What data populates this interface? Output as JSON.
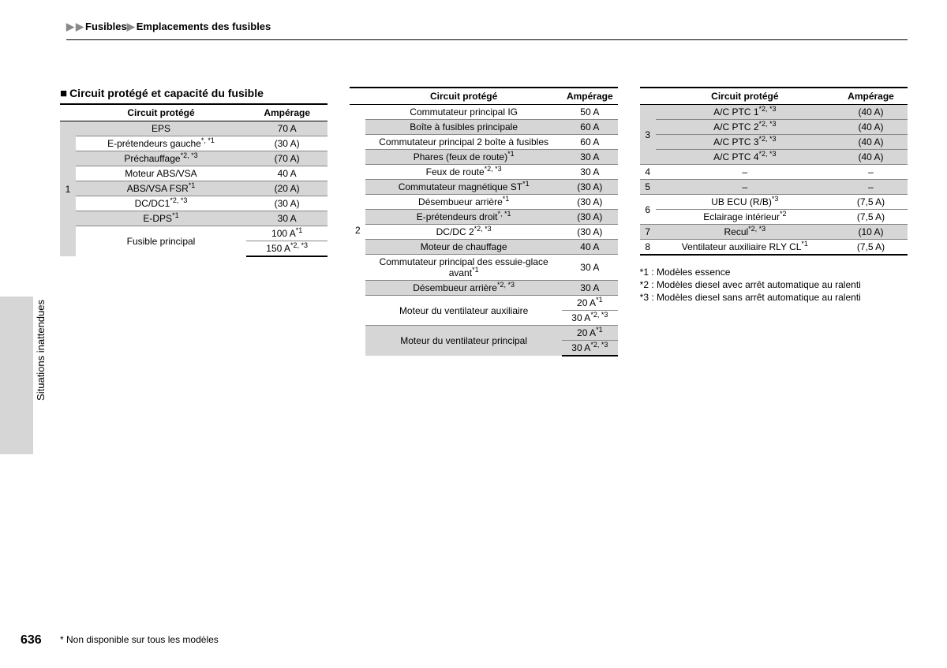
{
  "breadcrumb": {
    "part1": "Fusibles",
    "part2": "Emplacements des fusibles"
  },
  "side_label": "Situations inattendues",
  "page_number": "636",
  "footnote_line": "* Non disponible sur tous les modèles",
  "section_title": "Circuit protégé et capacité du fusible",
  "headers": {
    "circuit": "Circuit protégé",
    "amp": "Ampérage"
  },
  "table1": {
    "index": "1",
    "rows": [
      {
        "c": "EPS",
        "a": "70 A",
        "g": true
      },
      {
        "c": "E-prétendeurs gauche",
        "sup": "*, *1",
        "a": "(30 A)"
      },
      {
        "c": "Préchauffage",
        "sup": "*2, *3",
        "a": "(70 A)",
        "g": true
      },
      {
        "c": "Moteur ABS/VSA",
        "a": "40 A"
      },
      {
        "c": "ABS/VSA FSR",
        "sup": "*1",
        "a": "(20 A)",
        "g": true
      },
      {
        "c": "DC/DC1",
        "sup": "*2, *3",
        "a": "(30 A)"
      },
      {
        "c": "E-DPS",
        "sup": "*1",
        "a": "30 A",
        "g": true
      },
      {
        "c": "Fusible principal",
        "a": "100 A",
        "asup": "*1",
        "rowspan": 2
      },
      {
        "a": "150 A",
        "asup": "*2, *3"
      }
    ]
  },
  "table2": {
    "index": "2",
    "rows": [
      {
        "c": "Commutateur principal IG",
        "a": "50 A"
      },
      {
        "c": "Boîte à fusibles principale",
        "a": "60 A",
        "g": true
      },
      {
        "c": "Commutateur principal 2 boîte à fusibles",
        "a": "60 A"
      },
      {
        "c": "Phares (feux de route)",
        "sup": "*1",
        "a": "30 A",
        "g": true
      },
      {
        "c": "Feux de route",
        "sup": "*2, *3",
        "a": "30 A"
      },
      {
        "c": "Commutateur magnétique ST",
        "sup": "*1",
        "a": "(30 A)",
        "g": true
      },
      {
        "c": "Désembueur arrière",
        "sup": "*1",
        "a": "(30 A)"
      },
      {
        "c": "E-prétendeurs droit",
        "sup": "*, *1",
        "a": "(30 A)",
        "g": true
      },
      {
        "c": "DC/DC 2",
        "sup": "*2, *3",
        "a": "(30 A)"
      },
      {
        "c": "Moteur de chauffage",
        "a": "40 A",
        "g": true
      },
      {
        "c": "Commutateur principal des essuie-glace avant",
        "sup": "*1",
        "a": "30 A"
      },
      {
        "c": "Désembueur arrière",
        "sup": "*2, *3",
        "a": "30 A",
        "g": true
      },
      {
        "c": "Moteur du ventilateur auxiliaire",
        "a": "20 A",
        "asup": "*1",
        "rowspan": 2
      },
      {
        "a": "30 A",
        "asup": "*2, *3"
      },
      {
        "c": "Moteur du ventilateur principal",
        "a": "20 A",
        "asup": "*1",
        "g": true,
        "rowspan": 2
      },
      {
        "a": "30 A",
        "asup": "*2, *3",
        "g": true
      }
    ]
  },
  "table3": {
    "groups": [
      {
        "index": "3",
        "g": true,
        "rows": [
          {
            "c": "A/C PTC 1",
            "sup": "*2, *3",
            "a": "(40 A)"
          },
          {
            "c": "A/C PTC 2",
            "sup": "*2, *3",
            "a": "(40 A)"
          },
          {
            "c": "A/C PTC 3",
            "sup": "*2, *3",
            "a": "(40 A)"
          },
          {
            "c": "A/C PTC 4",
            "sup": "*2, *3",
            "a": "(40 A)"
          }
        ]
      },
      {
        "index": "4",
        "rows": [
          {
            "c": "–",
            "a": "–"
          }
        ]
      },
      {
        "index": "5",
        "g": true,
        "rows": [
          {
            "c": "–",
            "a": "–"
          }
        ]
      },
      {
        "index": "6",
        "rows": [
          {
            "c": "UB ECU (R/B)",
            "sup": "*3",
            "a": "(7,5 A)"
          },
          {
            "c": "Eclairage intérieur",
            "sup": "*2",
            "a": "(7,5 A)"
          }
        ]
      },
      {
        "index": "7",
        "g": true,
        "rows": [
          {
            "c": "Recul",
            "sup": "*2, *3",
            "a": "(10 A)"
          }
        ]
      },
      {
        "index": "8",
        "rows": [
          {
            "c": "Ventilateur auxiliaire RLY CL",
            "sup": "*1",
            "a": "(7,5 A)"
          }
        ]
      }
    ]
  },
  "notes": [
    "*1 : Modèles essence",
    "*2 : Modèles diesel avec arrêt automatique au ralenti",
    "*3 : Modèles diesel sans arrêt automatique au ralenti"
  ]
}
